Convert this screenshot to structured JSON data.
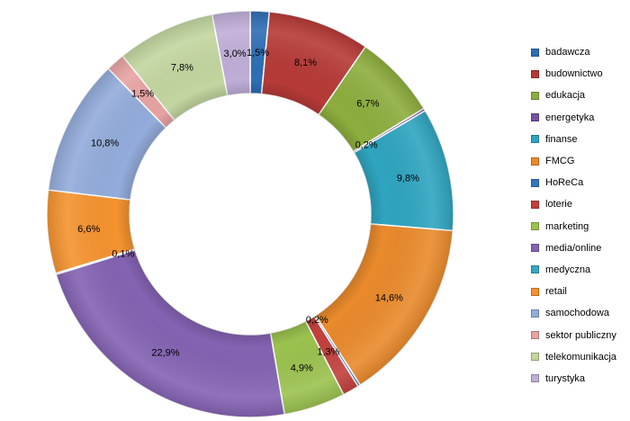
{
  "chart_data": {
    "type": "pie",
    "variant": "doughnut",
    "title": "",
    "legend_position": "right",
    "categories": [
      "badawcza",
      "budownictwo",
      "edukacja",
      "energetyka",
      "finanse",
      "FMCG",
      "HoReCa",
      "loterie",
      "marketing",
      "media/online",
      "medyczna",
      "retail",
      "samochodowa",
      "sektor publiczny",
      "telekomunikacja",
      "turystyka"
    ],
    "values": [
      1.5,
      8.1,
      6.7,
      0.2,
      9.8,
      14.6,
      0.2,
      1.3,
      4.9,
      22.9,
      0.1,
      6.6,
      10.8,
      1.5,
      7.8,
      3.0
    ],
    "value_labels": [
      "1,5%",
      "8,1%",
      "6,7%",
      "0,2%",
      "9,8%",
      "14,6%",
      "0,2%",
      "1,3%",
      "4,9%",
      "22,9%",
      "0,1%",
      "6,6%",
      "10,8%",
      "1,5%",
      "7,8%",
      "3,0%"
    ],
    "colors": [
      "#2e6eb5",
      "#b63a37",
      "#8dae3e",
      "#7652a0",
      "#2fa5c0",
      "#ea8a2c",
      "#3874bc",
      "#c2403c",
      "#9bc24f",
      "#8463b3",
      "#38a6c4",
      "#f5932f",
      "#93acdb",
      "#e7a3a2",
      "#c3d6a0",
      "#bfaed7"
    ]
  }
}
